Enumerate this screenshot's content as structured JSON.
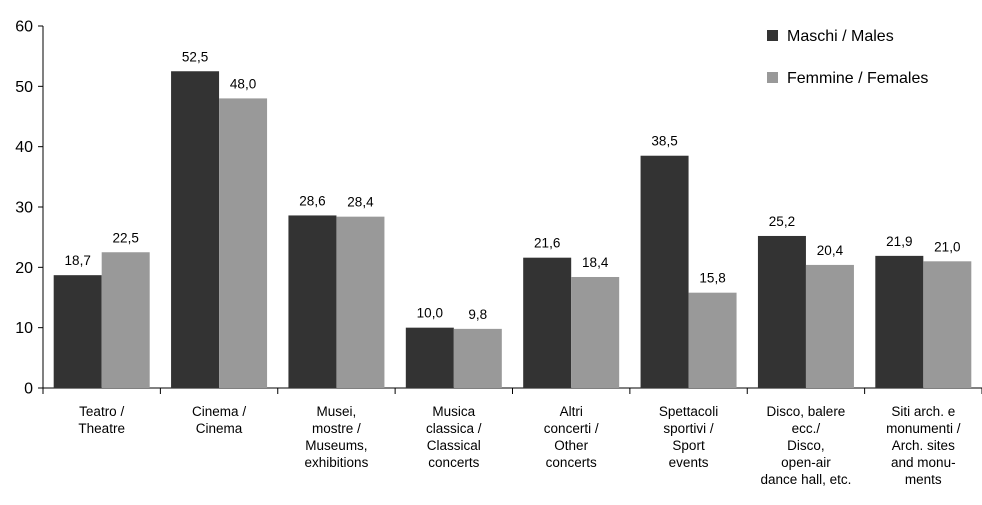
{
  "chart_data": {
    "type": "bar",
    "title": "",
    "xlabel": "",
    "ylabel": "",
    "ylim": [
      0,
      60
    ],
    "yticks": [
      0,
      10,
      20,
      30,
      40,
      50,
      60
    ],
    "grid": false,
    "legend_position": "top-right",
    "categories": [
      [
        "Teatro /",
        "Theatre"
      ],
      [
        "Cinema /",
        "Cinema"
      ],
      [
        "Musei,",
        "mostre /",
        "Museums,",
        "exhibitions"
      ],
      [
        "Musica",
        "classica /",
        "Classical",
        "concerts"
      ],
      [
        "Altri",
        "concerti /",
        "Other",
        "concerts"
      ],
      [
        "Spettacoli",
        "sportivi /",
        "Sport",
        "events"
      ],
      [
        "Disco, balere",
        "ecc./",
        "Disco,",
        "open-air",
        "dance hall, etc."
      ],
      [
        "Siti arch. e",
        "monumenti /",
        "Arch. sites",
        "and monu-",
        "ments"
      ]
    ],
    "series": [
      {
        "name": "Maschi / Males",
        "color": "#333333",
        "values": [
          18.7,
          52.5,
          28.6,
          10.0,
          21.6,
          38.5,
          25.2,
          21.9
        ],
        "labels": [
          "18,7",
          "52,5",
          "28,6",
          "10,0",
          "21,6",
          "38,5",
          "25,2",
          "21,9"
        ]
      },
      {
        "name": "Femmine / Females",
        "color": "#999999",
        "values": [
          22.5,
          48.0,
          28.4,
          9.8,
          18.4,
          15.8,
          20.4,
          21.0
        ],
        "labels": [
          "22,5",
          "48,0",
          "28,4",
          "9,8",
          "18,4",
          "15,8",
          "20,4",
          "21,0"
        ]
      }
    ]
  }
}
